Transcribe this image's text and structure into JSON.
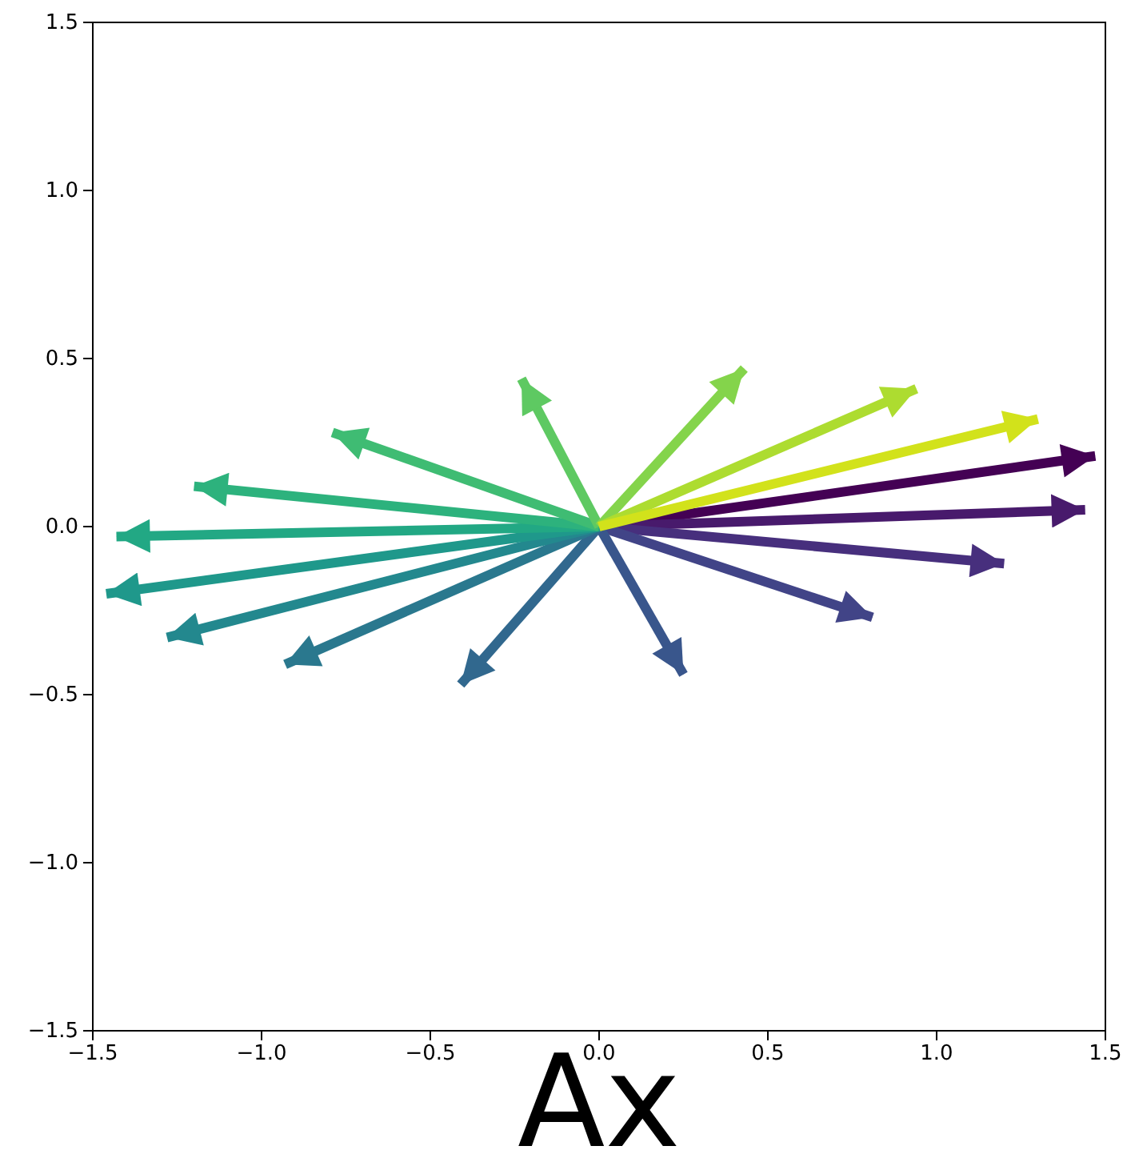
{
  "chart_data": {
    "type": "line",
    "xlabel": "Ax",
    "xlim": [
      -1.5,
      1.5
    ],
    "ylim": [
      -1.5,
      1.5
    ],
    "xticks": [
      {
        "value": -1.5,
        "label": "−1.5"
      },
      {
        "value": -1,
        "label": "−1.0"
      },
      {
        "value": -0.5,
        "label": "−0.5"
      },
      {
        "value": 0,
        "label": "0.0"
      },
      {
        "value": 0.5,
        "label": "0.5"
      },
      {
        "value": 1,
        "label": "1.0"
      },
      {
        "value": 1.5,
        "label": "1.5"
      }
    ],
    "yticks": [
      {
        "value": -1.5,
        "label": "−1.5"
      },
      {
        "value": -1,
        "label": "−1.0"
      },
      {
        "value": -0.5,
        "label": "−0.5"
      },
      {
        "value": 0,
        "label": "0.0"
      },
      {
        "value": 0.5,
        "label": "0.5"
      },
      {
        "value": 1,
        "label": "1.0"
      },
      {
        "value": 1.5,
        "label": "1.5"
      }
    ],
    "grid": false,
    "marker": "none",
    "line_style": "solid",
    "series": [
      {
        "color": "#440154",
        "x": [
          0,
          1.47
        ],
        "values": [
          0,
          0.21
        ]
      },
      {
        "color": "#481a6c",
        "x": [
          0,
          1.44
        ],
        "values": [
          0,
          0.05
        ]
      },
      {
        "color": "#472f7d",
        "x": [
          0,
          1.2
        ],
        "values": [
          0,
          -0.11
        ]
      },
      {
        "color": "#414487",
        "x": [
          0,
          0.81
        ],
        "values": [
          0,
          -0.27
        ]
      },
      {
        "color": "#39568c",
        "x": [
          0,
          0.25
        ],
        "values": [
          0,
          -0.44
        ]
      },
      {
        "color": "#31688e",
        "x": [
          0,
          -0.41
        ],
        "values": [
          0,
          -0.47
        ]
      },
      {
        "color": "#2a788e",
        "x": [
          0,
          -0.93
        ],
        "values": [
          0,
          -0.41
        ]
      },
      {
        "color": "#23888e",
        "x": [
          0,
          -1.28
        ],
        "values": [
          0,
          -0.33
        ]
      },
      {
        "color": "#1f988b",
        "x": [
          0,
          -1.46
        ],
        "values": [
          0,
          -0.2
        ]
      },
      {
        "color": "#22a884",
        "x": [
          0,
          -1.43
        ],
        "values": [
          0,
          -0.03
        ]
      },
      {
        "color": "#2db27d",
        "x": [
          0,
          -1.2
        ],
        "values": [
          0,
          0.12
        ]
      },
      {
        "color": "#3fbc73",
        "x": [
          0,
          -0.79
        ],
        "values": [
          0,
          0.28
        ]
      },
      {
        "color": "#5ec962",
        "x": [
          0,
          -0.23
        ],
        "values": [
          0,
          0.44
        ]
      },
      {
        "color": "#84d44b",
        "x": [
          0,
          0.43
        ],
        "values": [
          0,
          0.47
        ]
      },
      {
        "color": "#addc30",
        "x": [
          0,
          0.94
        ],
        "values": [
          0,
          0.41
        ]
      },
      {
        "color": "#d2e21b",
        "x": [
          0,
          1.3
        ],
        "values": [
          0,
          0.32
        ]
      }
    ]
  }
}
